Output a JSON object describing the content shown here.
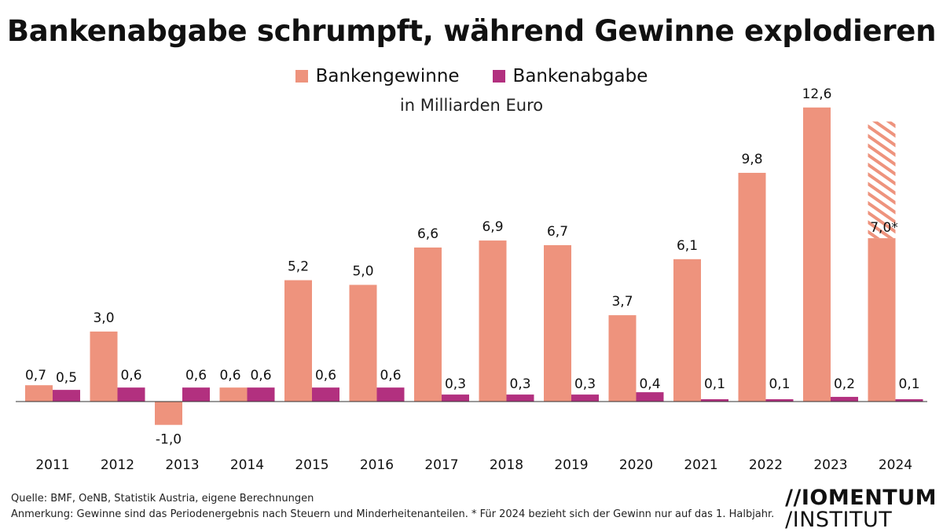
{
  "title": "Bankenabgabe schrumpft, während Gewinne explodieren",
  "subtitle": "in Milliarden Euro",
  "legend": {
    "profits": "Bankengewinne",
    "levy": "Bankenabgabe"
  },
  "colors": {
    "profits": "#EE937D",
    "levy": "#B2307F"
  },
  "footnotes": {
    "source": "Quelle: BMF, OeNB, Statistik Austria, eigene Berechnungen",
    "note": "Anmerkung: Gewinne sind das Periodenergebnis nach Steuern und Minderheitenanteilen. * Für 2024 bezieht sich der Gewinn nur auf das 1. Halbjahr."
  },
  "logo": {
    "line1": "//IOMENTUM",
    "line2": "/INSTITUT"
  },
  "chart_data": {
    "type": "bar",
    "categories": [
      "2011",
      "2012",
      "2013",
      "2014",
      "2015",
      "2016",
      "2017",
      "2018",
      "2019",
      "2020",
      "2021",
      "2022",
      "2023",
      "2024"
    ],
    "series": [
      {
        "name": "Bankengewinne",
        "values": [
          0.7,
          3.0,
          -1.0,
          0.6,
          5.2,
          5.0,
          6.6,
          6.9,
          6.7,
          3.7,
          6.1,
          9.8,
          12.6,
          7.0
        ],
        "labels": [
          "0,7",
          "3,0",
          "-1,0",
          "0,6",
          "5,2",
          "5,0",
          "6,6",
          "6,9",
          "6,7",
          "3,7",
          "6,1",
          "9,8",
          "12,6",
          "7,0*"
        ]
      },
      {
        "name": "Bankenabgabe",
        "values": [
          0.5,
          0.6,
          0.6,
          0.6,
          0.6,
          0.6,
          0.3,
          0.3,
          0.3,
          0.4,
          0.1,
          0.1,
          0.2,
          0.1
        ],
        "labels": [
          "0,5",
          "0,6",
          "0,6",
          "0,6",
          "0,6",
          "0,6",
          "0,3",
          "0,3",
          "0,3",
          "0,4",
          "0,1",
          "0,1",
          "0,2",
          "0,1"
        ]
      }
    ],
    "projected_extension": {
      "category": "2024",
      "series": "Bankengewinne",
      "from": 7.0,
      "to": 12.0,
      "style": "hatched"
    },
    "ylim": [
      -1.0,
      12.6
    ],
    "grid": false,
    "legend_position": "top-center"
  }
}
